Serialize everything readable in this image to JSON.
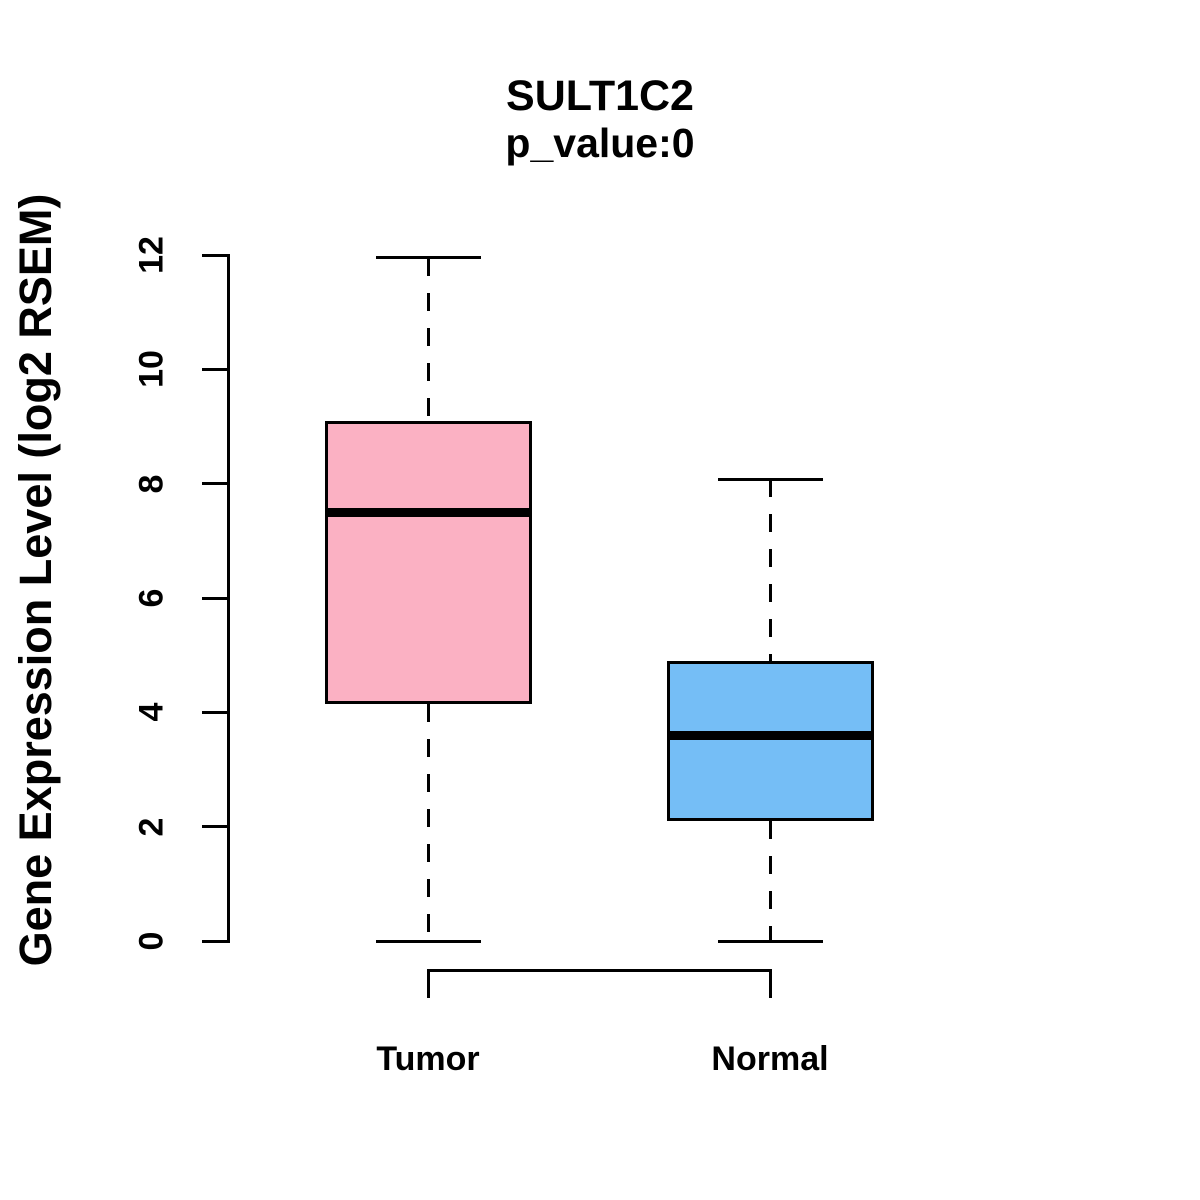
{
  "title": "SULT1C2",
  "subtitle": "p_value:0",
  "y_axis": {
    "label": "Gene Expression Level (log2 RSEM)",
    "ticks": [
      "0",
      "2",
      "4",
      "6",
      "8",
      "10",
      "12"
    ],
    "tick_values": [
      0,
      2,
      4,
      6,
      8,
      10,
      12
    ],
    "range": [
      0,
      12
    ]
  },
  "chart_data": {
    "type": "boxplot",
    "title": "SULT1C2",
    "subtitle": "p_value:0",
    "ylabel": "Gene Expression Level (log2 RSEM)",
    "ylim": [
      0,
      12
    ],
    "yticks": [
      0,
      2,
      4,
      6,
      8,
      10,
      12
    ],
    "categories": [
      "Tumor",
      "Normal"
    ],
    "series": [
      {
        "name": "Tumor",
        "whisker_low": 0,
        "q1": 4.15,
        "median": 7.5,
        "q3": 9.1,
        "whisker_high": 11.95,
        "outliers": [],
        "fill": "#FBB1C3"
      },
      {
        "name": "Normal",
        "whisker_low": 0,
        "q1": 2.1,
        "median": 3.6,
        "q3": 4.9,
        "whisker_high": 8.08,
        "outliers": [],
        "fill": "#75BEF6"
      }
    ],
    "box_border_color": "#000000",
    "median_color": "#000000",
    "whisker_style": "dashed",
    "background": "#FFFFFF",
    "grid": false,
    "legend": false
  }
}
